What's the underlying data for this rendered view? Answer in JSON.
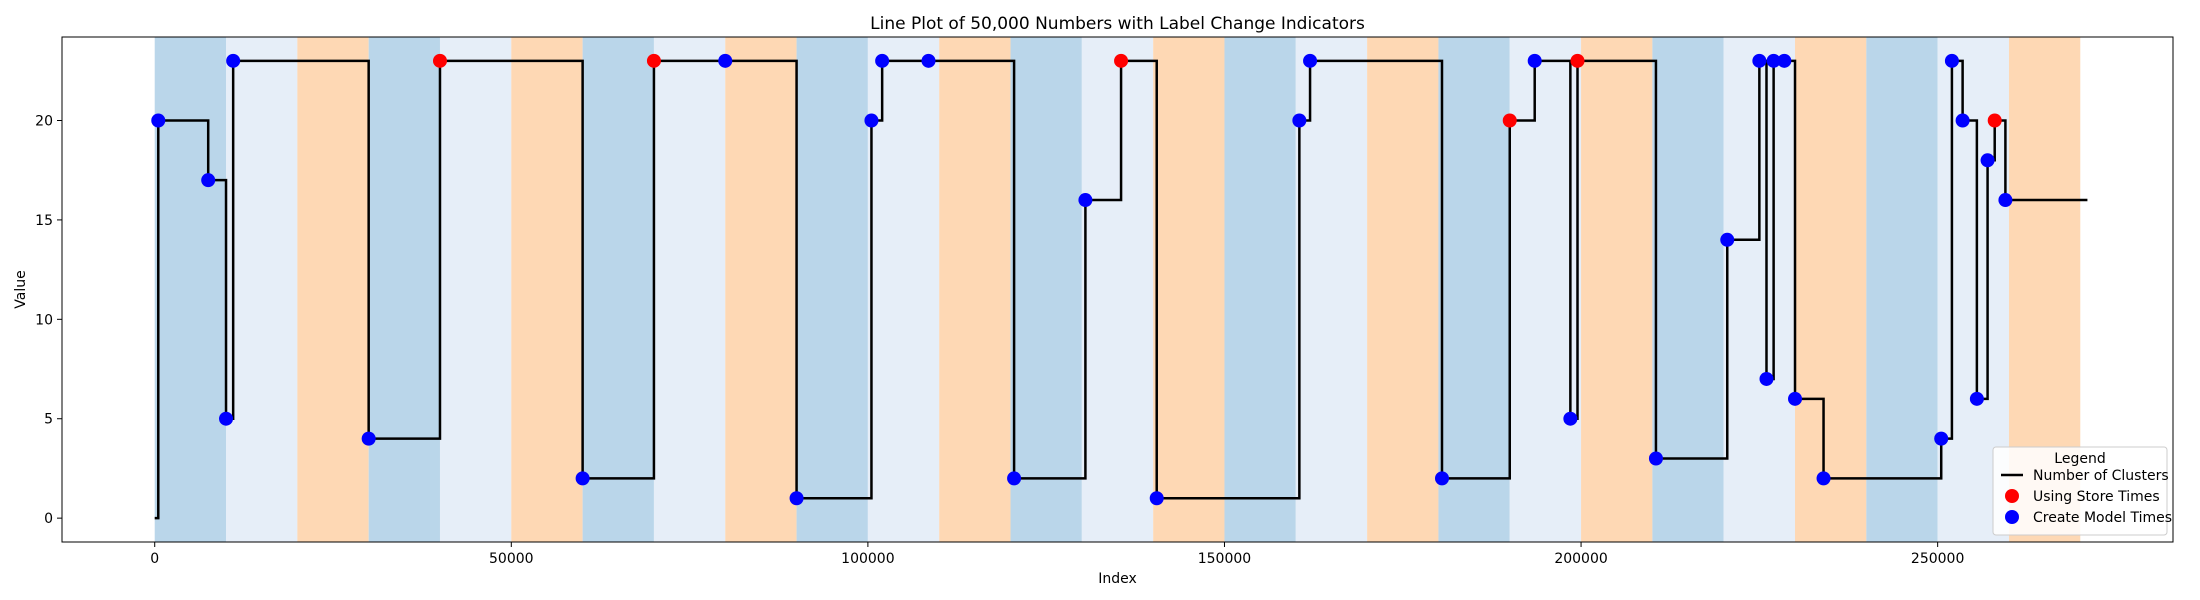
{
  "chart_data": {
    "type": "line",
    "title": "Line Plot of 50,000 Numbers with Label Change Indicators",
    "xlabel": "Index",
    "ylabel": "Value",
    "xlim": [
      -13000,
      283000
    ],
    "ylim": [
      -1.2,
      24.2
    ],
    "x_ticks": [
      0,
      50000,
      100000,
      150000,
      200000,
      250000
    ],
    "x_tick_labels": [
      "0",
      "50000",
      "100000",
      "150000",
      "200000",
      "250000"
    ],
    "y_ticks": [
      0,
      5,
      10,
      15,
      20
    ],
    "y_tick_labels": [
      "0",
      "5",
      "10",
      "15",
      "20"
    ],
    "grid": false,
    "legend": {
      "title": "Legend",
      "placement": "lower-right",
      "entries": [
        "Number of Clusters",
        "Using Store Times",
        "Create Model Times"
      ]
    },
    "bands": [
      {
        "x0": 0,
        "x1": 10000,
        "color": "#bad6ea"
      },
      {
        "x0": 10000,
        "x1": 20000,
        "color": "#e6eef8"
      },
      {
        "x0": 20000,
        "x1": 30000,
        "color": "#fed8b4"
      },
      {
        "x0": 30000,
        "x1": 40000,
        "color": "#bad6ea"
      },
      {
        "x0": 40000,
        "x1": 50000,
        "color": "#e6eef8"
      },
      {
        "x0": 50000,
        "x1": 60000,
        "color": "#fed8b4"
      },
      {
        "x0": 60000,
        "x1": 70000,
        "color": "#bad6ea"
      },
      {
        "x0": 70000,
        "x1": 80000,
        "color": "#e6eef8"
      },
      {
        "x0": 80000,
        "x1": 90000,
        "color": "#fed8b4"
      },
      {
        "x0": 90000,
        "x1": 100000,
        "color": "#bad6ea"
      },
      {
        "x0": 100000,
        "x1": 110000,
        "color": "#e6eef8"
      },
      {
        "x0": 110000,
        "x1": 120000,
        "color": "#fed8b4"
      },
      {
        "x0": 120000,
        "x1": 130000,
        "color": "#bad6ea"
      },
      {
        "x0": 130000,
        "x1": 140000,
        "color": "#e6eef8"
      },
      {
        "x0": 140000,
        "x1": 150000,
        "color": "#fed8b4"
      },
      {
        "x0": 150000,
        "x1": 160000,
        "color": "#bad6ea"
      },
      {
        "x0": 160000,
        "x1": 170000,
        "color": "#e6eef8"
      },
      {
        "x0": 170000,
        "x1": 180000,
        "color": "#fed8b4"
      },
      {
        "x0": 180000,
        "x1": 190000,
        "color": "#bad6ea"
      },
      {
        "x0": 190000,
        "x1": 200000,
        "color": "#e6eef8"
      },
      {
        "x0": 200000,
        "x1": 210000,
        "color": "#fed8b4"
      },
      {
        "x0": 210000,
        "x1": 220000,
        "color": "#bad6ea"
      },
      {
        "x0": 220000,
        "x1": 230000,
        "color": "#e6eef8"
      },
      {
        "x0": 230000,
        "x1": 240000,
        "color": "#fed8b4"
      },
      {
        "x0": 240000,
        "x1": 250000,
        "color": "#bad6ea"
      },
      {
        "x0": 250000,
        "x1": 260000,
        "color": "#e6eef8"
      },
      {
        "x0": 260000,
        "x1": 270000,
        "color": "#fed8b4"
      }
    ],
    "series": [
      {
        "name": "Number of Clusters",
        "type": "step",
        "color": "#000000",
        "x": [
          0,
          500,
          7500,
          10000,
          11000,
          30000,
          40000,
          60000,
          70000,
          80000,
          90000,
          100500,
          102000,
          108500,
          120500,
          130500,
          135500,
          140500,
          160500,
          162000,
          180500,
          190000,
          193500,
          198500,
          199500,
          210500,
          220500,
          225000,
          226000,
          227000,
          228500,
          230000,
          234000,
          250500,
          252000,
          253500,
          255500,
          257000,
          258000,
          259500,
          271000
        ],
        "y": [
          0,
          20,
          17,
          5,
          23,
          4,
          23,
          2,
          23,
          23,
          1,
          20,
          23,
          23,
          2,
          16,
          23,
          1,
          20,
          23,
          2,
          20,
          23,
          5,
          23,
          3,
          14,
          23,
          7,
          23,
          23,
          6,
          2,
          4,
          23,
          20,
          6,
          18,
          20,
          16,
          16
        ]
      },
      {
        "name": "Using Store Times",
        "type": "scatter",
        "color": "#ff0000",
        "x": [
          40000,
          70000,
          135500,
          190000,
          199500,
          258000
        ],
        "y": [
          23,
          23,
          23,
          20,
          23,
          20
        ]
      },
      {
        "name": "Create Model Times",
        "type": "scatter",
        "color": "#0000ff",
        "x": [
          500,
          7500,
          10000,
          11000,
          30000,
          60000,
          80000,
          90000,
          100500,
          102000,
          108500,
          120500,
          130500,
          140500,
          160500,
          162000,
          180500,
          193500,
          198500,
          210500,
          220500,
          225000,
          226000,
          227000,
          228500,
          230000,
          234000,
          250500,
          252000,
          253500,
          255500,
          257000,
          259500
        ],
        "y": [
          20,
          17,
          5,
          23,
          4,
          2,
          23,
          1,
          20,
          23,
          23,
          2,
          16,
          1,
          20,
          23,
          2,
          23,
          5,
          3,
          14,
          23,
          7,
          23,
          23,
          6,
          2,
          4,
          23,
          20,
          6,
          18,
          16
        ]
      }
    ]
  }
}
